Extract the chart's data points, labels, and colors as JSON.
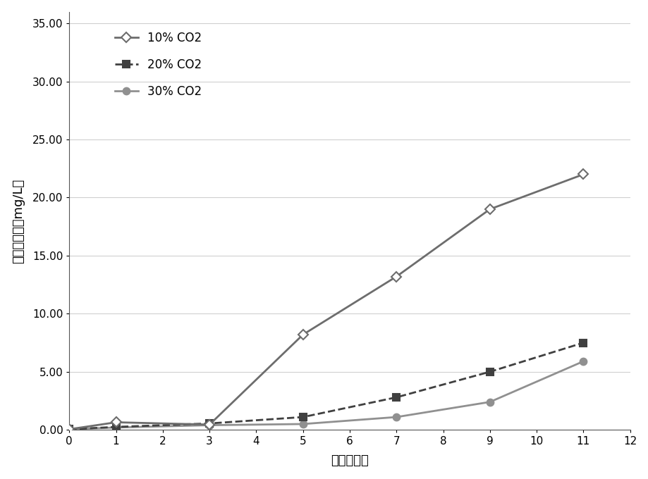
{
  "title": "",
  "xlabel": "时间（天）",
  "ylabel": "类胡萝卜素（mg/L）",
  "x_10": [
    0,
    1,
    3,
    5,
    7,
    9,
    11
  ],
  "y_10": [
    0.05,
    0.65,
    0.45,
    8.2,
    13.2,
    19.0,
    22.0
  ],
  "x_20": [
    0,
    1,
    3,
    5,
    7,
    9,
    11
  ],
  "y_20": [
    0.05,
    0.25,
    0.55,
    1.1,
    2.8,
    5.0,
    7.5
  ],
  "x_30": [
    0,
    1,
    3,
    5,
    7,
    9,
    11
  ],
  "y_30": [
    0.05,
    0.2,
    0.4,
    0.5,
    1.1,
    2.4,
    5.9
  ],
  "color_10": "#6d6d6d",
  "color_20": "#404040",
  "color_30": "#909090",
  "xlim": [
    0,
    12
  ],
  "ylim": [
    0,
    36
  ],
  "xticks": [
    0,
    1,
    2,
    3,
    4,
    5,
    6,
    7,
    8,
    9,
    10,
    11,
    12
  ],
  "yticks": [
    0.0,
    5.0,
    10.0,
    15.0,
    20.0,
    25.0,
    30.0,
    35.0
  ],
  "legend_10": "10% CO2",
  "legend_20": "20% CO2",
  "legend_30": "30% CO2",
  "bg_color": "#ffffff",
  "grid_color": "#d0d0d0"
}
